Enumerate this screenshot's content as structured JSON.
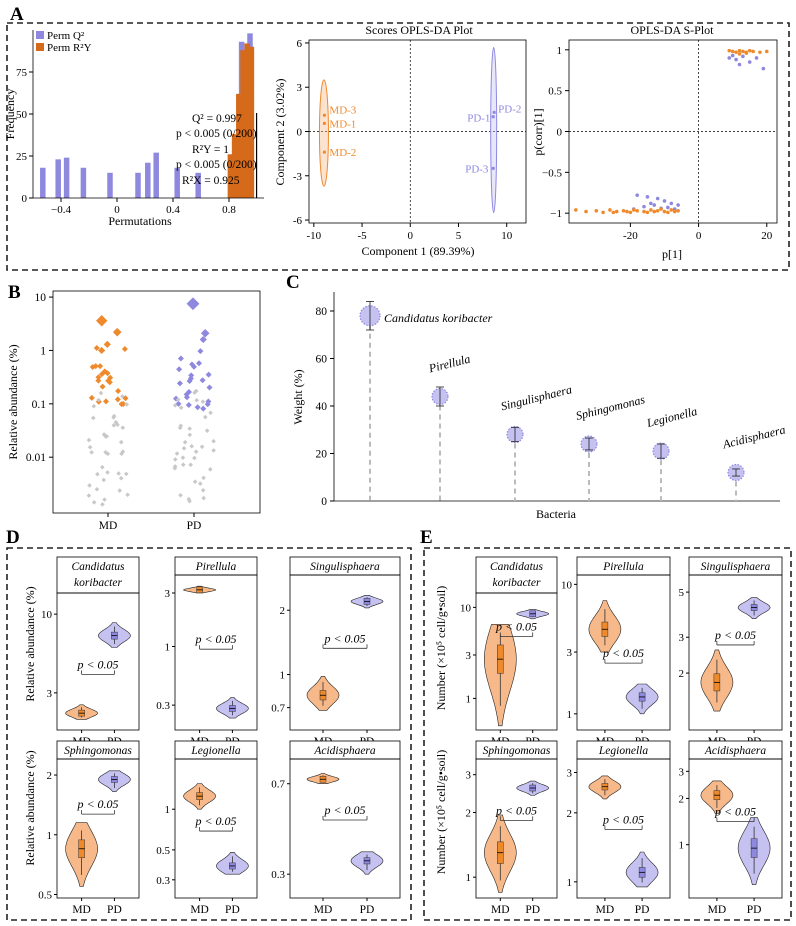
{
  "colors": {
    "md": "#ee8a2c",
    "md_fill": "#f7b98a",
    "pd": "#8e88df",
    "pd_fill": "#c5c1f1",
    "grey": "#c8c8c8"
  },
  "panel_letters": [
    "A",
    "B",
    "C",
    "D",
    "E"
  ],
  "chart_data": [
    {
      "id": "perm",
      "type": "bar",
      "title": "",
      "xlabel": "Permutations",
      "ylabel": "Frequency",
      "xlim": [
        -0.6,
        1.05
      ],
      "ylim": [
        0,
        100
      ],
      "xticks": [
        -0.4,
        0,
        0.4,
        0.8
      ],
      "xtick_labels": [
        "−0.4",
        "0",
        "0.4",
        "0.8"
      ],
      "yticks": [
        0,
        25,
        50,
        75
      ],
      "legend": [
        "Perm Q²",
        "Perm R²Y"
      ],
      "series": [
        {
          "name": "Perm Q²",
          "x": [
            -0.53,
            -0.42,
            -0.36,
            -0.24,
            -0.05,
            0.15,
            0.22,
            0.28,
            0.43,
            0.58,
            0.83,
            0.89,
            0.95
          ],
          "values": [
            18,
            23,
            24,
            18,
            15,
            15,
            21,
            27,
            18,
            15,
            26,
            93,
            98
          ]
        },
        {
          "name": "Perm R²Y",
          "x": [
            0.81,
            0.84,
            0.87,
            0.9,
            0.93,
            0.96
          ],
          "values": [
            26,
            38,
            62,
            88,
            92,
            90
          ]
        }
      ],
      "annotations": [
        "Q² = 0.997",
        "p < 0.005 (0/200)",
        "R²Y = 1",
        "p < 0.005 (0/200)",
        "R²X = 0.925"
      ]
    },
    {
      "id": "scores",
      "type": "scatter",
      "title": "Scores OPLS-DA Plot",
      "xlabel": "Component 1 (89.39%)",
      "ylabel": "Component 2 (3.02%)",
      "xlim": [
        -10.5,
        12
      ],
      "ylim": [
        -6.2,
        6.2
      ],
      "xticks": [
        -10,
        -5,
        0,
        5,
        10
      ],
      "yticks": [
        -6,
        -3,
        0,
        3,
        6
      ],
      "points": [
        {
          "label": "MD-1",
          "x": -8.9,
          "y": 0.55,
          "group": "MD"
        },
        {
          "label": "MD-2",
          "x": -8.9,
          "y": -1.4,
          "group": "MD"
        },
        {
          "label": "MD-3",
          "x": -8.9,
          "y": 1.1,
          "group": "MD"
        },
        {
          "label": "PD-1",
          "x": 8.6,
          "y": 1.0,
          "group": "PD"
        },
        {
          "label": "PD-2",
          "x": 8.7,
          "y": 1.3,
          "group": "PD"
        },
        {
          "label": "PD-3",
          "x": 8.6,
          "y": -2.5,
          "group": "PD"
        }
      ]
    },
    {
      "id": "splot",
      "type": "scatter",
      "title": "OPLS-DA S-Plot",
      "xlabel": "p[1]",
      "ylabel": "p(corr)[1]",
      "xlim": [
        -38,
        23
      ],
      "ylim": [
        -1.12,
        1.12
      ],
      "xticks": [
        -20,
        0,
        20
      ],
      "yticks": [
        -1,
        -0.5,
        0,
        0.5,
        1
      ],
      "ytick_labels": [
        "−1",
        "−0.5",
        "0",
        "0.5",
        "1"
      ],
      "md_points": [
        [
          9,
          0.99
        ],
        [
          10,
          0.98
        ],
        [
          11,
          0.97
        ],
        [
          12,
          0.99
        ],
        [
          13,
          0.98
        ],
        [
          14,
          0.97
        ],
        [
          15,
          0.99
        ],
        [
          16,
          0.98
        ],
        [
          18,
          0.97
        ],
        [
          20,
          0.98
        ],
        [
          12,
          0.95
        ],
        [
          14,
          0.96
        ],
        [
          -36,
          -0.96
        ],
        [
          -33,
          -0.98
        ],
        [
          -30,
          -0.97
        ],
        [
          -28,
          -0.99
        ],
        [
          -26,
          -0.96
        ],
        [
          -24,
          -0.98
        ],
        [
          -22,
          -0.97
        ],
        [
          -20,
          -0.99
        ],
        [
          -18,
          -0.97
        ],
        [
          -16,
          -0.98
        ],
        [
          -14,
          -0.96
        ],
        [
          -12,
          -0.97
        ],
        [
          -10,
          -0.98
        ],
        [
          -8,
          -0.96
        ],
        [
          -6,
          -0.97
        ],
        [
          -25,
          -0.99
        ],
        [
          -19,
          -0.96
        ],
        [
          -15,
          -0.99
        ],
        [
          -11,
          -0.95
        ],
        [
          -9,
          -0.99
        ],
        [
          -7,
          -0.98
        ],
        [
          -13,
          -0.98
        ],
        [
          -21,
          -0.98
        ]
      ],
      "pd_points": [
        [
          9,
          0.9
        ],
        [
          11,
          0.88
        ],
        [
          13,
          0.92
        ],
        [
          15,
          0.85
        ],
        [
          17,
          0.9
        ],
        [
          12,
          0.82
        ],
        [
          19,
          0.77
        ],
        [
          10,
          0.93
        ],
        [
          -18,
          -0.78
        ],
        [
          -15,
          -0.8
        ],
        [
          -12,
          -0.82
        ],
        [
          -10,
          -0.85
        ],
        [
          -8,
          -0.88
        ],
        [
          -13,
          -0.9
        ],
        [
          -16,
          -0.92
        ],
        [
          -11,
          -0.94
        ],
        [
          -9,
          -0.93
        ],
        [
          -7,
          -0.95
        ],
        [
          -14,
          -0.88
        ],
        [
          -19,
          -0.95
        ],
        [
          -6,
          -0.9
        ]
      ]
    },
    {
      "id": "B",
      "type": "scatter",
      "xlabel": "",
      "ylabel": "Relative abundance (%)",
      "categories": [
        "MD",
        "PD"
      ],
      "yscale": "log",
      "ylim": [
        0.0009,
        13
      ],
      "yticks": [
        0.01,
        0.1,
        1,
        10
      ],
      "ytick_labels": [
        "0.01",
        "0.1",
        "1",
        "10"
      ]
    },
    {
      "id": "C",
      "type": "scatter",
      "xlabel": "Bacteria",
      "ylabel": "Weight (%)",
      "ylim": [
        0,
        88
      ],
      "yticks": [
        0,
        20,
        40,
        60,
        80
      ],
      "categories": [
        "Candidatus koribacter",
        "Pirellula",
        "Singulisphaera",
        "Sphingomonas",
        "Legionella",
        "Acidisphaera"
      ],
      "values": [
        78,
        44,
        28,
        24,
        21,
        12
      ],
      "errors": [
        6,
        4,
        3,
        2.5,
        3,
        1.5
      ]
    },
    {
      "id": "D",
      "type": "violin",
      "ylabel": "Relative abundance (%)",
      "categories": [
        "MD",
        "PD"
      ],
      "annotation": "p < 0.05",
      "panels": [
        {
          "title_lines": [
            "Candidatus",
            "koribacter"
          ],
          "scale": "log",
          "ylim": [
            1.7,
            13
          ],
          "yticks": [
            3,
            10
          ],
          "ytick_labels": [
            "3",
            "10"
          ],
          "md_median": 2.2,
          "pd_median": 7.2,
          "md_range": [
            2.0,
            2.5
          ],
          "pd_range": [
            6.0,
            8.8
          ]
        },
        {
          "title_lines": [
            "Pirellula"
          ],
          "scale": "log",
          "ylim": [
            0.18,
            4
          ],
          "yticks": [
            0.3,
            1,
            3
          ],
          "ytick_labels": [
            "0.3",
            "1",
            "3"
          ],
          "md_median": 3.2,
          "pd_median": 0.28,
          "md_range": [
            3.0,
            3.45
          ],
          "pd_range": [
            0.23,
            0.35
          ]
        },
        {
          "title_lines": [
            "Singulisphaera"
          ],
          "scale": "log",
          "ylim": [
            0.55,
            2.8
          ],
          "yticks": [
            0.7,
            1,
            2
          ],
          "ytick_labels": [
            "0.7",
            "1",
            "2"
          ],
          "md_median": 0.8,
          "pd_median": 2.2,
          "md_range": [
            0.68,
            0.98
          ],
          "pd_range": [
            2.05,
            2.35
          ]
        },
        {
          "title_lines": [
            "Sphingomonas"
          ],
          "scale": "log",
          "ylim": [
            0.48,
            2.3
          ],
          "yticks": [
            0.5,
            1,
            2
          ],
          "ytick_labels": [
            "0.5",
            "1",
            "2"
          ],
          "md_median": 0.85,
          "pd_median": 1.9,
          "md_range": [
            0.55,
            1.15
          ],
          "pd_range": [
            1.65,
            2.1
          ]
        },
        {
          "title_lines": [
            "Legionella"
          ],
          "scale": "log",
          "ylim": [
            0.22,
            2.2
          ],
          "yticks": [
            0.3,
            0.5,
            1
          ],
          "ytick_labels": [
            "0.3",
            "0.5",
            "1"
          ],
          "md_median": 1.25,
          "pd_median": 0.38,
          "md_range": [
            1.0,
            1.55
          ],
          "pd_range": [
            0.33,
            0.48
          ]
        },
        {
          "title_lines": [
            "Acidisphaera"
          ],
          "scale": "log",
          "ylim": [
            0.24,
            0.85
          ],
          "yticks": [
            0.3,
            0.7
          ],
          "ytick_labels": [
            "0.3",
            "0.7"
          ],
          "md_median": 0.73,
          "pd_median": 0.34,
          "md_range": [
            0.7,
            0.77
          ],
          "pd_range": [
            0.3,
            0.37
          ]
        }
      ]
    },
    {
      "id": "E",
      "type": "violin",
      "ylabel": "Number (×10⁵ cell/g•soil)",
      "categories": [
        "MD",
        "PD"
      ],
      "annotation": "p < 0.05",
      "panels": [
        {
          "title_lines": [
            "Candidatus",
            "koribacter"
          ],
          "scale": "log",
          "ylim": [
            0.45,
            13
          ],
          "yticks": [
            1,
            3,
            10
          ],
          "ytick_labels": [
            "1",
            "3",
            "10"
          ],
          "md_median": 2.7,
          "pd_median": 8.5,
          "md_range": [
            0.5,
            6.5
          ],
          "pd_range": [
            7.5,
            9.5
          ]
        },
        {
          "title_lines": [
            "Pirellula"
          ],
          "scale": "log",
          "ylim": [
            0.75,
            11
          ],
          "yticks": [
            1,
            3,
            10
          ],
          "ytick_labels": [
            "1",
            "3",
            "10"
          ],
          "md_median": 4.5,
          "pd_median": 1.35,
          "md_range": [
            3.0,
            7.5
          ],
          "pd_range": [
            1.0,
            1.7
          ]
        },
        {
          "title_lines": [
            "Singulisphaera"
          ],
          "scale": "log",
          "ylim": [
            1.05,
            5.8
          ],
          "yticks": [
            2,
            3,
            5
          ],
          "ytick_labels": [
            "2",
            "3",
            "5"
          ],
          "md_median": 1.8,
          "pd_median": 4.2,
          "md_range": [
            1.3,
            2.6
          ],
          "pd_range": [
            3.7,
            4.7
          ]
        },
        {
          "title_lines": [
            "Sphingomonas"
          ],
          "scale": "log",
          "ylim": [
            0.8,
            3.4
          ],
          "yticks": [
            1,
            2,
            3
          ],
          "ytick_labels": [
            "1",
            "2",
            "3"
          ],
          "md_median": 1.3,
          "pd_median": 2.6,
          "md_range": [
            0.85,
            1.95
          ],
          "pd_range": [
            2.4,
            2.8
          ]
        },
        {
          "title_lines": [
            "Legionella"
          ],
          "scale": "log",
          "ylim": [
            0.85,
            3.3
          ],
          "yticks": [
            1,
            2,
            3
          ],
          "ytick_labels": [
            "1",
            "2",
            "3"
          ],
          "md_median": 2.6,
          "pd_median": 1.1,
          "md_range": [
            2.3,
            2.9
          ],
          "pd_range": [
            0.95,
            1.35
          ]
        },
        {
          "title_lines": [
            "Acidisphaera"
          ],
          "scale": "log",
          "ylim": [
            0.45,
            3.4
          ],
          "yticks": [
            1,
            2,
            3
          ],
          "ytick_labels": [
            "1",
            "2",
            "3"
          ],
          "md_median": 2.1,
          "pd_median": 0.95,
          "md_range": [
            1.6,
            2.6
          ],
          "pd_range": [
            0.55,
            1.5
          ]
        }
      ]
    }
  ]
}
